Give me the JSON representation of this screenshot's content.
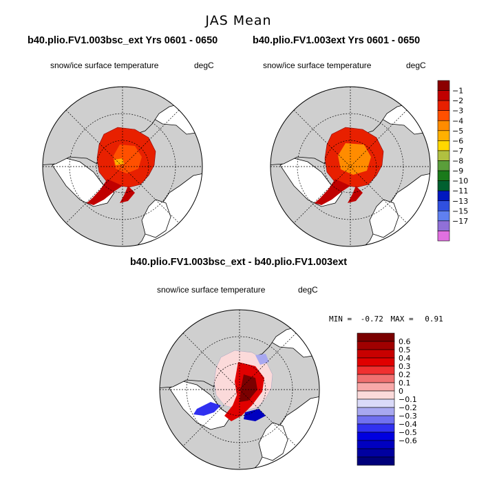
{
  "title": "JAS Mean",
  "left_panel": {
    "case": "b40.plio.FV1.003bsc_ext  Yrs 0601 - 0650",
    "variable": "snow/ice surface temperature",
    "units": "degC"
  },
  "right_panel": {
    "case": "b40.plio.FV1.003ext  Yrs 0601 - 0650",
    "variable": "snow/ice surface temperature",
    "units": "degC"
  },
  "diff_panel": {
    "case": "b40.plio.FV1.003bsc_ext - b40.plio.FV1.003ext",
    "variable": "snow/ice surface temperature",
    "units": "degC",
    "min_label": "MIN =",
    "min_value": "-0.72",
    "max_label": "MAX =",
    "max_value": "0.91"
  },
  "colorbar_abs": {
    "labels": [
      "−1",
      "−2",
      "−3",
      "−4",
      "−5",
      "−6",
      "−7",
      "−8",
      "−9",
      "−10",
      "−11",
      "−13",
      "−15",
      "−17"
    ],
    "colors": [
      "#8b0000",
      "#c00000",
      "#e82000",
      "#ff5000",
      "#ff8c00",
      "#ffb000",
      "#ffd800",
      "#b0c040",
      "#5a9e3a",
      "#1a7a1a",
      "#006030",
      "#0018c0",
      "#3050e0",
      "#6080f0",
      "#9070d8",
      "#e070e0"
    ]
  },
  "colorbar_diff": {
    "labels": [
      "0.6",
      "0.5",
      "0.4",
      "0.3",
      "0.2",
      "0.1",
      "0",
      "−0.1",
      "−0.2",
      "−0.3",
      "−0.4",
      "−0.5",
      "−0.6"
    ],
    "colors": [
      "#7a0000",
      "#a00000",
      "#c80000",
      "#e00000",
      "#f03030",
      "#f07070",
      "#f8a8a8",
      "#fbdada",
      "#dadaf8",
      "#a8a8f0",
      "#7070f0",
      "#3030f0",
      "#0000e0",
      "#0000c0",
      "#0000a0",
      "#00007a"
    ]
  }
}
